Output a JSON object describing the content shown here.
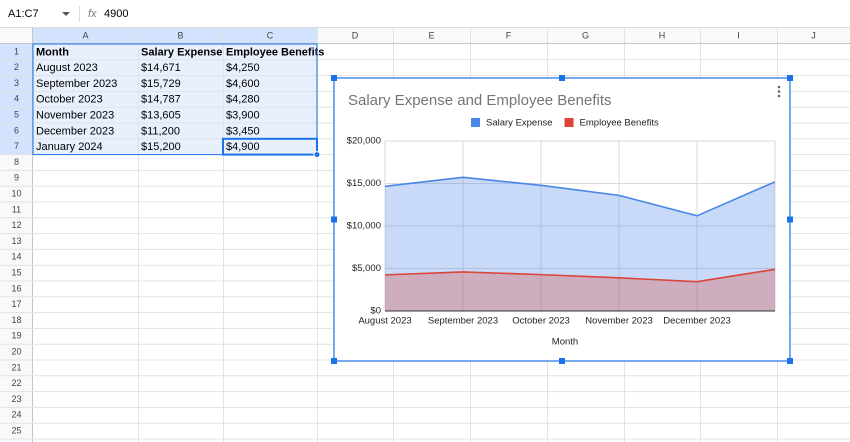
{
  "name_box": "A1:C7",
  "formula_icon": "fx",
  "formula": "4900",
  "columns": [
    "A",
    "B",
    "C",
    "D",
    "E",
    "F",
    "G",
    "H",
    "I",
    "J"
  ],
  "rows": [
    1,
    2,
    3,
    4,
    5,
    6,
    7,
    8,
    9,
    10,
    11,
    12,
    13,
    14,
    15,
    16,
    17,
    18,
    19,
    20,
    21,
    22,
    23,
    24,
    25
  ],
  "cells": [
    [
      "Month",
      "Salary Expense",
      "Employee Benefits"
    ],
    [
      "August 2023",
      "$14,671",
      "$4,250"
    ],
    [
      "September 2023",
      "$15,729",
      "$4,600"
    ],
    [
      "October 2023",
      "$14,787",
      "$4,280"
    ],
    [
      "November 2023",
      "$13,605",
      "$3,900"
    ],
    [
      "December 2023",
      "$11,200",
      "$3,450"
    ],
    [
      "January 2024",
      "$15,200",
      "$4,900"
    ]
  ],
  "chart_data": {
    "type": "area",
    "title": "Salary Expense and Employee Benefits",
    "x_label": "Month",
    "categories": [
      "August 2023",
      "September 2023",
      "October 2023",
      "November 2023",
      "December 2023",
      null
    ],
    "series": [
      {
        "name": "Salary Expense",
        "color": "#4a86e8",
        "values": [
          14671,
          15729,
          14787,
          13605,
          11200,
          15200
        ]
      },
      {
        "name": "Employee Benefits",
        "color": "#db4437",
        "values": [
          4250,
          4600,
          4280,
          3900,
          3450,
          4900
        ]
      }
    ],
    "ylim": [
      0,
      20000
    ],
    "yticks": [
      {
        "value": 0,
        "label": "$0"
      },
      {
        "value": 5000,
        "label": "$5,000"
      },
      {
        "value": 10000,
        "label": "$10,000"
      },
      {
        "value": 15000,
        "label": "$15,000"
      },
      {
        "value": 20000,
        "label": "$20,000"
      }
    ],
    "grid": true
  }
}
